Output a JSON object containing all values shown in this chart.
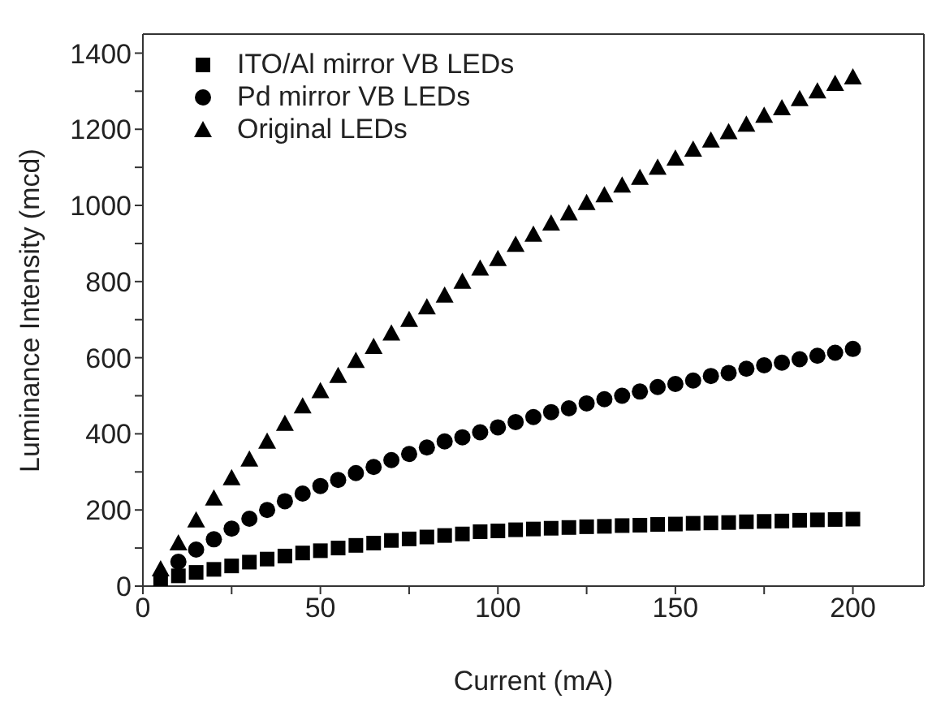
{
  "chart_data": {
    "type": "scatter",
    "xlabel": "Current (mA)",
    "ylabel": "Luminance Intensity (mcd)",
    "x": [
      5,
      10,
      15,
      20,
      25,
      30,
      35,
      40,
      45,
      50,
      55,
      60,
      65,
      70,
      75,
      80,
      85,
      90,
      95,
      100,
      105,
      110,
      115,
      120,
      125,
      130,
      135,
      140,
      145,
      150,
      155,
      160,
      165,
      170,
      175,
      180,
      185,
      190,
      195,
      200
    ],
    "xlim": [
      0,
      220
    ],
    "ylim": [
      0,
      1450
    ],
    "xticks": [
      0,
      {
        "value": 25,
        "label": null
      },
      50,
      {
        "value": 75,
        "label": null
      },
      100,
      {
        "value": 125,
        "label": null
      },
      150,
      {
        "value": 175,
        "label": null
      },
      200
    ],
    "yticks": [
      0,
      {
        "value": 100,
        "label": null
      },
      200,
      {
        "value": 300,
        "label": null
      },
      400,
      {
        "value": 500,
        "label": null
      },
      600,
      {
        "value": 700,
        "label": null
      },
      800,
      {
        "value": 900,
        "label": null
      },
      1000,
      {
        "value": 1100,
        "label": null
      },
      1200,
      {
        "value": 1300,
        "label": null
      },
      1400
    ],
    "legend": "top left",
    "series": [
      {
        "name": "ITO/Al mirror VB LEDs",
        "color": "#000000",
        "marker": "square",
        "values": [
          8,
          27,
          36,
          44,
          53,
          63,
          71,
          79,
          87,
          93,
          100,
          107,
          113,
          120,
          124,
          129,
          133,
          137,
          143,
          145,
          148,
          150,
          152,
          154,
          156,
          157,
          159,
          160,
          162,
          163,
          165,
          166,
          167,
          169,
          170,
          171,
          173,
          174,
          175,
          176
        ]
      },
      {
        "name": "Pd mirror VB LEDs",
        "color": "#000000",
        "marker": "circle",
        "values": [
          null,
          64,
          96,
          123,
          151,
          177,
          200,
          223,
          243,
          263,
          279,
          297,
          313,
          331,
          347,
          364,
          380,
          391,
          404,
          417,
          431,
          444,
          457,
          467,
          480,
          491,
          500,
          511,
          523,
          531,
          540,
          552,
          560,
          571,
          580,
          587,
          596,
          605,
          613,
          623
        ]
      },
      {
        "name": "Original LEDs",
        "color": "#000000",
        "marker": "triangle",
        "values": [
          45,
          113,
          173,
          231,
          284,
          333,
          380,
          427,
          473,
          513,
          553,
          592,
          629,
          664,
          700,
          733,
          764,
          800,
          835,
          860,
          897,
          924,
          953,
          980,
          1007,
          1027,
          1053,
          1073,
          1100,
          1124,
          1147,
          1171,
          1193,
          1213,
          1236,
          1256,
          1280,
          1300,
          1320,
          1337
        ]
      }
    ]
  }
}
